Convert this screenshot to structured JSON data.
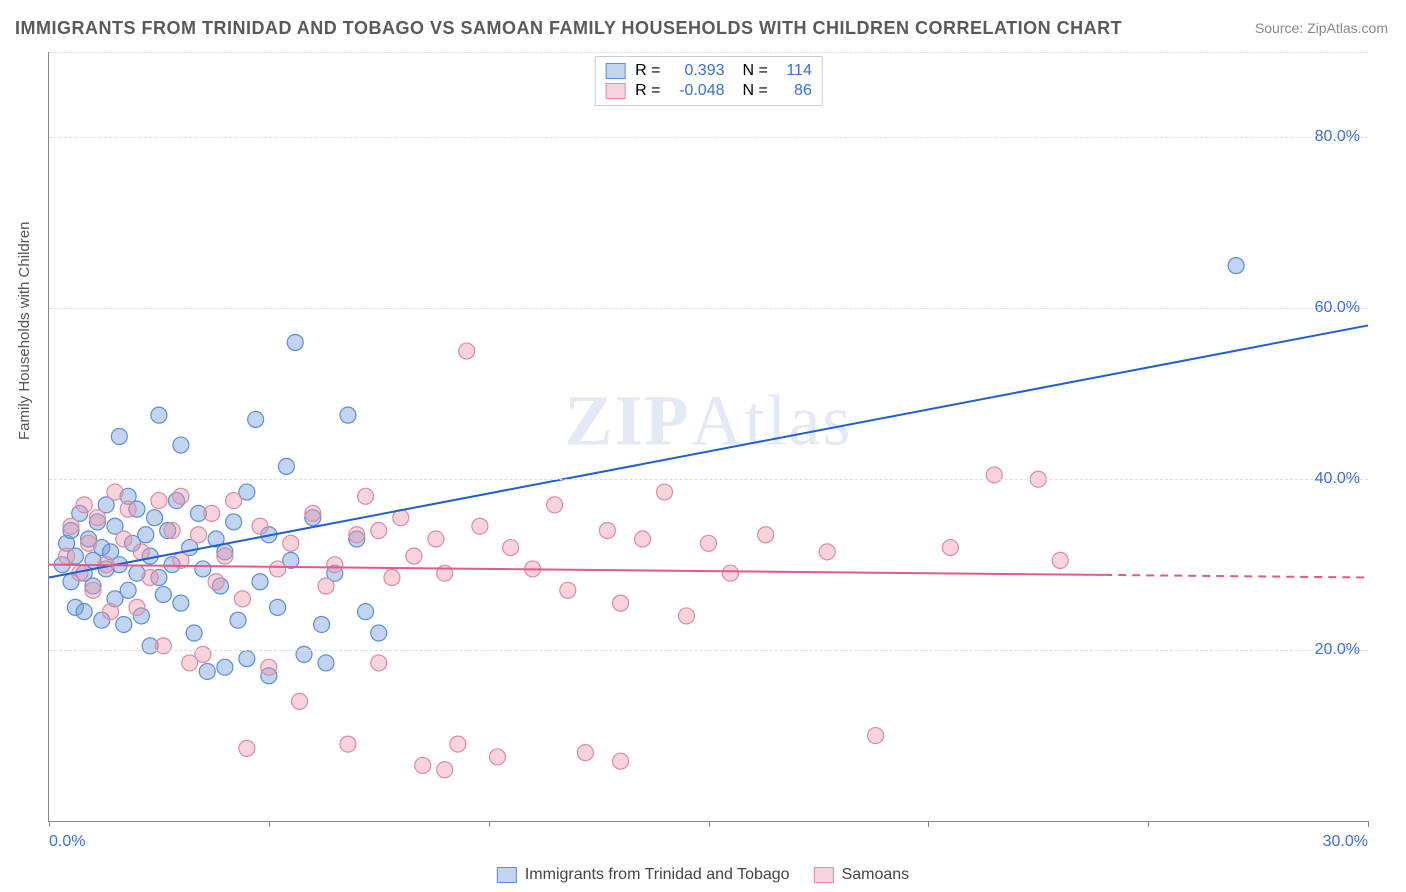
{
  "title": "IMMIGRANTS FROM TRINIDAD AND TOBAGO VS SAMOAN FAMILY HOUSEHOLDS WITH CHILDREN CORRELATION CHART",
  "source_label": "Source: ZipAtlas.com",
  "watermark_parts": {
    "a": "ZIP",
    "b": "Atlas"
  },
  "ylabel": "Family Households with Children",
  "chart": {
    "type": "scatter",
    "background_color": "#ffffff",
    "grid_color": "#dddddd",
    "axis_color": "#888888",
    "xlim": [
      0,
      30
    ],
    "ylim": [
      0,
      90
    ],
    "yticks": [
      20,
      40,
      60,
      80
    ],
    "ytick_labels": [
      "20.0%",
      "40.0%",
      "60.0%",
      "80.0%"
    ],
    "ytick_color": "#3a6fd8",
    "xtick_positions": [
      0,
      5,
      10,
      15,
      20,
      25,
      30
    ],
    "xtick_label_left": "0.0%",
    "xtick_label_right": "30.0%",
    "xtick_color": "#3a6fd8",
    "marker_radius": 8,
    "marker_stroke_width": 1.2,
    "line_width": 2
  },
  "series": [
    {
      "key": "trinidad",
      "label": "Immigrants from Trinidad and Tobago",
      "fill": "rgba(120,160,220,0.45)",
      "stroke": "#5a8fd8",
      "line_color": "#1f5fd0",
      "R_label": "R =",
      "R_value": "0.393",
      "N_label": "N =",
      "N_value": "114",
      "value_color": "#3a6fd8",
      "regression": {
        "x1": 0.0,
        "y1": 28.5,
        "x2": 30.0,
        "y2": 58.0,
        "dashed_from_x": null
      },
      "points": [
        [
          0.3,
          30.0
        ],
        [
          0.4,
          32.5
        ],
        [
          0.5,
          28.0
        ],
        [
          0.5,
          34.0
        ],
        [
          0.6,
          31.0
        ],
        [
          0.6,
          25.0
        ],
        [
          0.7,
          36.0
        ],
        [
          0.8,
          29.0
        ],
        [
          0.8,
          24.5
        ],
        [
          0.9,
          33.0
        ],
        [
          1.0,
          30.5
        ],
        [
          1.0,
          27.5
        ],
        [
          1.1,
          35.0
        ],
        [
          1.2,
          32.0
        ],
        [
          1.2,
          23.5
        ],
        [
          1.3,
          37.0
        ],
        [
          1.3,
          29.5
        ],
        [
          1.4,
          31.5
        ],
        [
          1.5,
          26.0
        ],
        [
          1.5,
          34.5
        ],
        [
          1.6,
          45.0
        ],
        [
          1.6,
          30.0
        ],
        [
          1.7,
          23.0
        ],
        [
          1.8,
          38.0
        ],
        [
          1.8,
          27.0
        ],
        [
          1.9,
          32.5
        ],
        [
          2.0,
          29.0
        ],
        [
          2.0,
          36.5
        ],
        [
          2.1,
          24.0
        ],
        [
          2.2,
          33.5
        ],
        [
          2.3,
          31.0
        ],
        [
          2.3,
          20.5
        ],
        [
          2.4,
          35.5
        ],
        [
          2.5,
          28.5
        ],
        [
          2.5,
          47.5
        ],
        [
          2.6,
          26.5
        ],
        [
          2.7,
          34.0
        ],
        [
          2.8,
          30.0
        ],
        [
          2.9,
          37.5
        ],
        [
          3.0,
          44.0
        ],
        [
          3.0,
          25.5
        ],
        [
          3.2,
          32.0
        ],
        [
          3.3,
          22.0
        ],
        [
          3.4,
          36.0
        ],
        [
          3.5,
          29.5
        ],
        [
          3.6,
          17.5
        ],
        [
          3.8,
          33.0
        ],
        [
          3.9,
          27.5
        ],
        [
          4.0,
          18.0
        ],
        [
          4.0,
          31.5
        ],
        [
          4.2,
          35.0
        ],
        [
          4.3,
          23.5
        ],
        [
          4.5,
          19.0
        ],
        [
          4.5,
          38.5
        ],
        [
          4.7,
          47.0
        ],
        [
          4.8,
          28.0
        ],
        [
          5.0,
          33.5
        ],
        [
          5.0,
          17.0
        ],
        [
          5.2,
          25.0
        ],
        [
          5.4,
          41.5
        ],
        [
          5.5,
          30.5
        ],
        [
          5.6,
          56.0
        ],
        [
          5.8,
          19.5
        ],
        [
          6.0,
          35.5
        ],
        [
          6.2,
          23.0
        ],
        [
          6.3,
          18.5
        ],
        [
          6.5,
          29.0
        ],
        [
          6.8,
          47.5
        ],
        [
          7.0,
          33.0
        ],
        [
          7.2,
          24.5
        ],
        [
          7.5,
          22.0
        ],
        [
          27.0,
          65.0
        ]
      ]
    },
    {
      "key": "samoans",
      "label": "Samoans",
      "fill": "rgba(235,150,170,0.42)",
      "stroke": "#e08aa0",
      "line_color": "#e05a8a",
      "R_label": "R =",
      "R_value": "-0.048",
      "N_label": "N =",
      "N_value": "86",
      "value_color": "#3a6fd8",
      "regression": {
        "x1": 0.0,
        "y1": 30.0,
        "x2": 30.0,
        "y2": 28.5,
        "dashed_from_x": 24.0
      },
      "points": [
        [
          0.4,
          31.0
        ],
        [
          0.5,
          34.5
        ],
        [
          0.7,
          29.0
        ],
        [
          0.8,
          37.0
        ],
        [
          0.9,
          32.5
        ],
        [
          1.0,
          27.0
        ],
        [
          1.1,
          35.5
        ],
        [
          1.3,
          30.0
        ],
        [
          1.4,
          24.5
        ],
        [
          1.5,
          38.5
        ],
        [
          1.7,
          33.0
        ],
        [
          1.8,
          36.5
        ],
        [
          2.0,
          25.0
        ],
        [
          2.1,
          31.5
        ],
        [
          2.3,
          28.5
        ],
        [
          2.5,
          37.5
        ],
        [
          2.6,
          20.5
        ],
        [
          2.8,
          34.0
        ],
        [
          3.0,
          30.5
        ],
        [
          3.0,
          38.0
        ],
        [
          3.2,
          18.5
        ],
        [
          3.4,
          33.5
        ],
        [
          3.5,
          19.5
        ],
        [
          3.7,
          36.0
        ],
        [
          3.8,
          28.0
        ],
        [
          4.0,
          31.0
        ],
        [
          4.2,
          37.5
        ],
        [
          4.4,
          26.0
        ],
        [
          4.5,
          8.5
        ],
        [
          4.8,
          34.5
        ],
        [
          5.0,
          18.0
        ],
        [
          5.2,
          29.5
        ],
        [
          5.5,
          32.5
        ],
        [
          5.7,
          14.0
        ],
        [
          6.0,
          36.0
        ],
        [
          6.3,
          27.5
        ],
        [
          6.5,
          30.0
        ],
        [
          6.8,
          9.0
        ],
        [
          7.0,
          33.5
        ],
        [
          7.2,
          38.0
        ],
        [
          7.5,
          34.0
        ],
        [
          7.5,
          18.5
        ],
        [
          7.8,
          28.5
        ],
        [
          8.0,
          35.5
        ],
        [
          8.3,
          31.0
        ],
        [
          8.5,
          6.5
        ],
        [
          8.8,
          33.0
        ],
        [
          9.0,
          29.0
        ],
        [
          9.0,
          6.0
        ],
        [
          9.3,
          9.0
        ],
        [
          9.5,
          55.0
        ],
        [
          9.8,
          34.5
        ],
        [
          10.2,
          7.5
        ],
        [
          10.5,
          32.0
        ],
        [
          11.0,
          29.5
        ],
        [
          11.5,
          37.0
        ],
        [
          11.8,
          27.0
        ],
        [
          12.2,
          8.0
        ],
        [
          12.7,
          34.0
        ],
        [
          13.0,
          25.5
        ],
        [
          13.0,
          7.0
        ],
        [
          13.5,
          33.0
        ],
        [
          14.0,
          38.5
        ],
        [
          14.5,
          24.0
        ],
        [
          15.0,
          32.5
        ],
        [
          15.5,
          29.0
        ],
        [
          16.3,
          33.5
        ],
        [
          17.7,
          31.5
        ],
        [
          18.8,
          10.0
        ],
        [
          20.5,
          32.0
        ],
        [
          21.5,
          40.5
        ],
        [
          22.5,
          40.0
        ],
        [
          23.0,
          30.5
        ]
      ]
    }
  ]
}
